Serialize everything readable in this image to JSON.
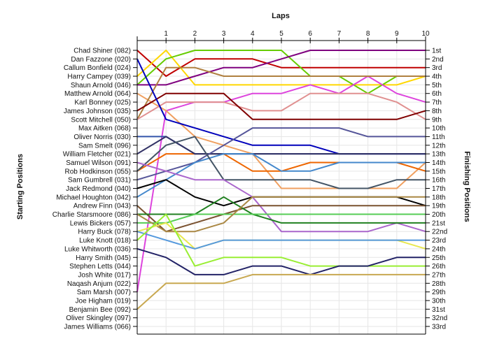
{
  "chart_data": {
    "type": "line",
    "title": "Laps",
    "ylabel_left": "Starting Positions",
    "ylabel_right": "Finishing Positions",
    "x": [
      0,
      1,
      2,
      3,
      4,
      5,
      6,
      7,
      8,
      9,
      10
    ],
    "xticks": [
      "1",
      "2",
      "3",
      "4",
      "5",
      "6",
      "7",
      "8",
      "9",
      "10"
    ],
    "xlim": [
      0,
      10
    ],
    "ylim": [
      1,
      33
    ],
    "y_inverted": true,
    "grid": true,
    "start_labels": [
      "Chad Shiner (082)",
      "Dan Fazzone (020)",
      "Callum Bonfield (024)",
      "Harry Campey (039)",
      "Shaun Arnold (046)",
      "Matthew Arnold (064)",
      "Karl Bonney (025)",
      "James Johnson (035)",
      "Scott Mitchell (050)",
      "Max Aitken (068)",
      "Oliver Norris (030)",
      "Sam Smelt (096)",
      "William Fletcher (021)",
      "Samuel Wilson (091)",
      "Rob Hodkinson (055)",
      "Sam Gumbrell (031)",
      "Jack Redmond (040)",
      "Michael Houghton (042)",
      "Andrew Finn (043)",
      "Charlie Starsmoore (086)",
      "Lewis Bickers (057)",
      "Harry Buck (078)",
      "Luke Knott (018)",
      "Luke Whitworth (036)",
      "Harry Smith (045)",
      "Stephen Letts (044)",
      "Josh White (017)",
      "Naqash Anjum (022)",
      "Sam Marsh (007)",
      "Joe Higham (019)",
      "Benjamin Bee (092)",
      "Oliver Skingley (097)",
      "James Williams (066)"
    ],
    "finish_labels": [
      "1st",
      "2nd",
      "3rd",
      "4th",
      "5th",
      "6th",
      "7th",
      "8th",
      "9th",
      "10th",
      "11th",
      "12th",
      "13th",
      "14th",
      "15th",
      "16th",
      "17th",
      "18th",
      "19th",
      "20th",
      "21st",
      "22nd",
      "23rd",
      "24th",
      "25th",
      "26th",
      "27th",
      "28th",
      "29th",
      "30th",
      "31st",
      "32nd",
      "33rd"
    ],
    "series": [
      {
        "color": "#c00000",
        "values": [
          1,
          4,
          2,
          2,
          2,
          3,
          3,
          3,
          3,
          3,
          3
        ]
      },
      {
        "color": "#ffd700",
        "values": [
          4,
          1,
          5,
          5,
          5,
          5,
          5,
          5,
          5,
          5,
          4
        ]
      },
      {
        "color": "#66cc00",
        "values": [
          5,
          2,
          1,
          1,
          1,
          1,
          4,
          4,
          6,
          4,
          4
        ]
      },
      {
        "color": "#7f007f",
        "values": [
          5,
          5,
          4,
          3,
          3,
          2,
          1,
          1,
          1,
          1,
          1
        ]
      },
      {
        "color": "#dd44dd",
        "values": [
          29,
          8,
          7,
          7,
          6,
          6,
          5,
          6,
          4,
          6,
          7
        ]
      },
      {
        "color": "#f0a060",
        "values": [
          6,
          8,
          11,
          12,
          13,
          17,
          17,
          17,
          17,
          17,
          14
        ]
      },
      {
        "color": "#b08040",
        "values": [
          9,
          3,
          3,
          4,
          4,
          4,
          4,
          4,
          4,
          4,
          4
        ]
      },
      {
        "color": "#e09090",
        "values": [
          9,
          7,
          7,
          7,
          8,
          8,
          6,
          6,
          6,
          7,
          9
        ]
      },
      {
        "color": "#800000",
        "values": [
          8,
          6,
          6,
          6,
          9,
          9,
          9,
          9,
          9,
          9,
          8
        ]
      },
      {
        "color": "#0000bb",
        "values": [
          2,
          9,
          10,
          11,
          12,
          12,
          12,
          13,
          13,
          13,
          13
        ]
      },
      {
        "color": "#ee6600",
        "values": [
          15,
          13,
          13,
          13,
          15,
          15,
          14,
          14,
          14,
          14,
          15
        ]
      },
      {
        "color": "#3355aa",
        "values": [
          11,
          11,
          13,
          13,
          13,
          13,
          13,
          13,
          13,
          13,
          13
        ]
      },
      {
        "color": "#333366",
        "values": [
          13,
          11,
          13,
          13,
          13,
          13,
          13,
          13,
          13,
          13,
          13
        ]
      },
      {
        "color": "#555599",
        "values": [
          16,
          15,
          14,
          12,
          10,
          10,
          10,
          10,
          11,
          11,
          11
        ]
      },
      {
        "color": "#4488cc",
        "values": [
          18,
          16,
          14,
          13,
          13,
          15,
          15,
          14,
          14,
          14,
          14
        ]
      },
      {
        "color": "#445566",
        "values": [
          15,
          12,
          11,
          16,
          16,
          16,
          16,
          17,
          17,
          16,
          16
        ]
      },
      {
        "color": "#000000",
        "values": [
          17,
          16,
          18,
          19,
          18,
          18,
          18,
          18,
          18,
          18,
          19
        ]
      },
      {
        "color": "#aa66cc",
        "values": [
          14,
          15,
          16,
          16,
          18,
          22,
          22,
          22,
          22,
          21,
          22
        ]
      },
      {
        "color": "#7a5230",
        "values": [
          19,
          22,
          21,
          20,
          19,
          19,
          19,
          19,
          19,
          19,
          19
        ]
      },
      {
        "color": "#208020",
        "values": [
          20,
          20,
          20,
          18,
          20,
          21,
          21,
          21,
          21,
          21,
          21
        ]
      },
      {
        "color": "#55cc55",
        "values": [
          21,
          21,
          20,
          20,
          20,
          20,
          20,
          20,
          20,
          20,
          20
        ]
      },
      {
        "color": "#aa8844",
        "values": [
          20,
          22,
          22,
          21,
          18,
          18,
          18,
          18,
          18,
          18,
          18
        ]
      },
      {
        "color": "#e8e850",
        "values": [
          22,
          21,
          24,
          23,
          23,
          23,
          23,
          23,
          23,
          23,
          24
        ]
      },
      {
        "color": "#5599dd",
        "values": [
          22,
          23,
          24,
          23,
          23,
          23,
          23,
          23,
          23,
          23,
          23
        ]
      },
      {
        "color": "#99ee33",
        "values": [
          23,
          20,
          26,
          25,
          25,
          25,
          26,
          26,
          26,
          26,
          26
        ]
      },
      {
        "color": "#222266",
        "values": [
          24,
          25,
          27,
          27,
          26,
          26,
          27,
          26,
          26,
          25,
          25
        ]
      },
      {
        "color": "#c8a850",
        "values": [
          31,
          28,
          28,
          28,
          27,
          27,
          27,
          27,
          27,
          27,
          27
        ]
      }
    ]
  }
}
